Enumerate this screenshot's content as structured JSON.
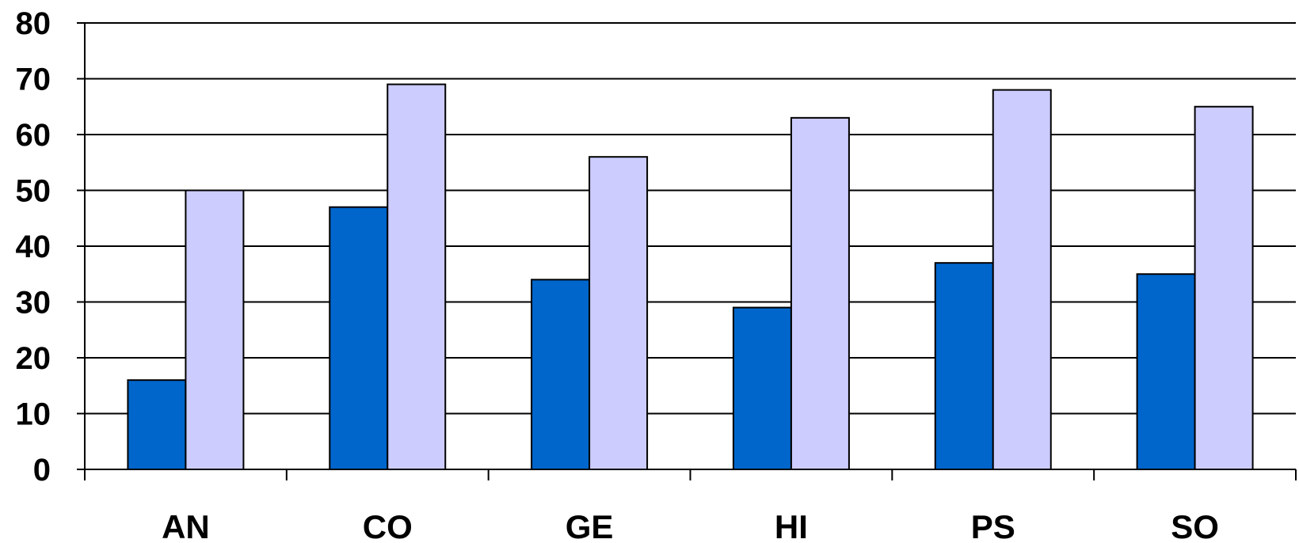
{
  "chart_data": {
    "type": "bar",
    "categories": [
      "AN",
      "CO",
      "GE",
      "HI",
      "PS",
      "SO"
    ],
    "series": [
      {
        "values": [
          16,
          47,
          34,
          29,
          37,
          35
        ],
        "color": "#0066CC"
      },
      {
        "values": [
          50,
          69,
          56,
          63,
          68,
          65
        ],
        "color": "#CCCCFF"
      }
    ],
    "ylim": [
      0,
      80
    ],
    "yticks": [
      "0",
      "10",
      "20",
      "30",
      "40",
      "50",
      "60",
      "70",
      "80"
    ],
    "grid": true,
    "legend": "none"
  }
}
